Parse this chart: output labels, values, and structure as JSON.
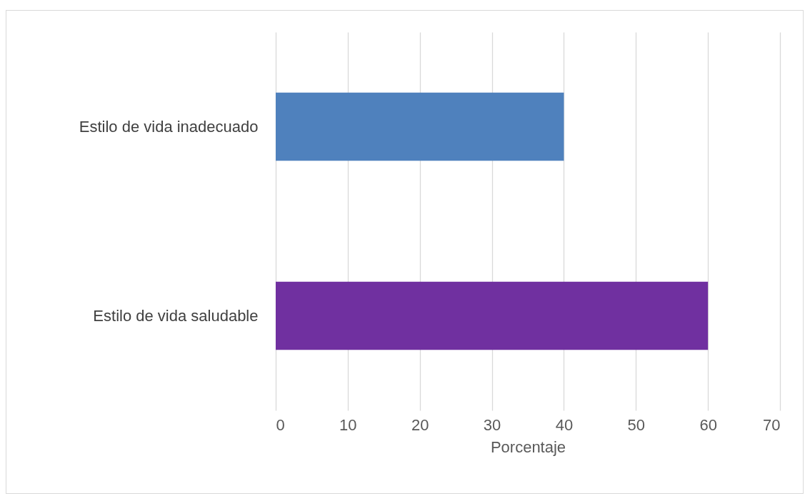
{
  "chart_data": {
    "type": "bar",
    "orientation": "horizontal",
    "categories": [
      "Estilo de vida inadecuado",
      "Estilo de vida saludable"
    ],
    "values": [
      40,
      60
    ],
    "colors": [
      "#4f81bd",
      "#7030a0"
    ],
    "xlabel": "Porcentaje",
    "xlim": [
      0,
      70
    ],
    "xticks": [
      0,
      10,
      20,
      30,
      40,
      50,
      60,
      70
    ],
    "grid": "x"
  }
}
